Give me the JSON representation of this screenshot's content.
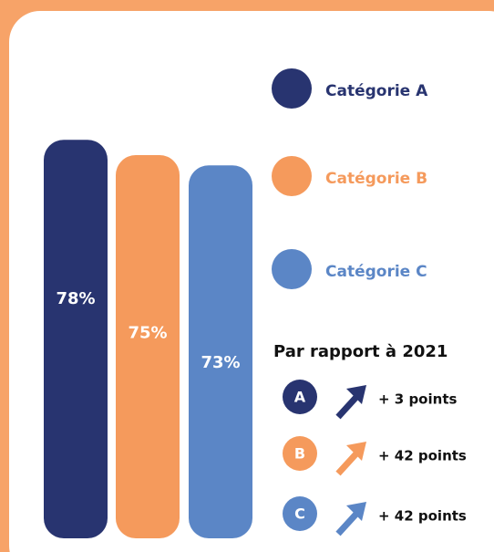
{
  "chart_data": {
    "type": "bar",
    "categories": [
      "Catégorie A",
      "Catégorie B",
      "Catégorie C"
    ],
    "values": [
      78,
      75,
      73
    ],
    "value_labels": [
      "78%",
      "75%",
      "73%"
    ],
    "colors": [
      "#283470",
      "#f59a5c",
      "#5b86c6"
    ],
    "ylim": [
      0,
      100
    ]
  },
  "comparison": {
    "title": "Par rapport à 2021",
    "items": [
      {
        "letter": "A",
        "text": "+ 3 points"
      },
      {
        "letter": "B",
        "text": "+ 42 points"
      },
      {
        "letter": "C",
        "text": "+ 42 points"
      }
    ]
  }
}
